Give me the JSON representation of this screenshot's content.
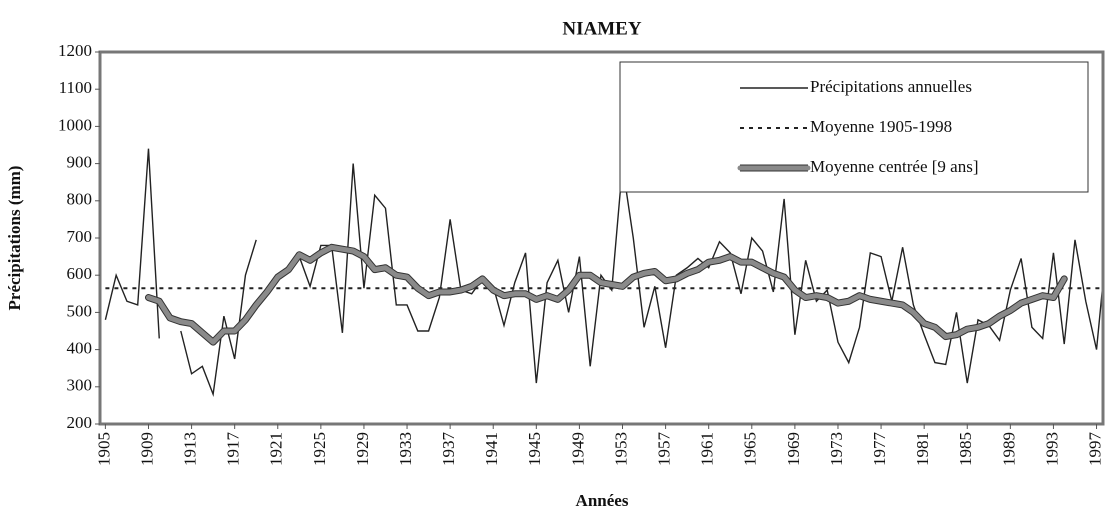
{
  "chart_data": {
    "type": "line",
    "title": "NIAMEY",
    "x_label": "Années",
    "y_label": "Précipitations (mm)",
    "xlim": [
      1904.5,
      1997.6
    ],
    "xticks": [
      1905,
      1909,
      1913,
      1917,
      1921,
      1925,
      1929,
      1933,
      1937,
      1941,
      1945,
      1949,
      1953,
      1957,
      1961,
      1965,
      1969,
      1973,
      1977,
      1981,
      1985,
      1989,
      1993,
      1997
    ],
    "ylim": [
      200,
      1200
    ],
    "yticks": [
      200,
      300,
      400,
      500,
      600,
      700,
      800,
      900,
      1000,
      1100,
      1200
    ],
    "legend": "upper right",
    "series": [
      {
        "name": "Précipitations annuelles",
        "color": "#222222",
        "style": "solid",
        "x": [
          1905,
          1906,
          1907,
          1908,
          1909,
          1910,
          1911,
          1912,
          1913,
          1914,
          1915,
          1916,
          1917,
          1918,
          1919,
          1920,
          1921,
          1922,
          1923,
          1924,
          1925,
          1926,
          1927,
          1928,
          1929,
          1930,
          1931,
          1932,
          1933,
          1934,
          1935,
          1936,
          1937,
          1938,
          1939,
          1940,
          1941,
          1942,
          1943,
          1944,
          1945,
          1946,
          1947,
          1948,
          1949,
          1950,
          1951,
          1952,
          1953,
          1954,
          1955,
          1956,
          1957,
          1958,
          1959,
          1960,
          1961,
          1962,
          1963,
          1964,
          1965,
          1966,
          1967,
          1968,
          1969,
          1970,
          1971,
          1972,
          1973,
          1974,
          1975,
          1976,
          1977,
          1978,
          1979,
          1980,
          1981,
          1982,
          1983,
          1984,
          1985,
          1986,
          1987,
          1988,
          1989,
          1990,
          1991,
          1992,
          1993,
          1994,
          1995,
          1996,
          1997,
          1998
        ],
        "values": [
          480,
          600,
          530,
          520,
          940,
          430,
          null,
          450,
          335,
          355,
          280,
          490,
          375,
          600,
          695,
          null,
          600,
          610,
          650,
          570,
          680,
          680,
          445,
          900,
          565,
          815,
          780,
          520,
          520,
          450,
          450,
          540,
          750,
          560,
          550,
          590,
          570,
          465,
          580,
          660,
          310,
          580,
          640,
          500,
          650,
          355,
          600,
          560,
          895,
          700,
          460,
          570,
          405,
          600,
          620,
          645,
          620,
          690,
          660,
          550,
          700,
          665,
          555,
          805,
          440,
          640,
          530,
          560,
          420,
          365,
          460,
          660,
          650,
          530,
          675,
          520,
          440,
          365,
          360,
          500,
          310,
          480,
          465,
          425,
          560,
          645,
          460,
          430,
          660,
          415,
          695,
          530,
          400,
          700
        ]
      },
      {
        "name": "Moyenne 1905-1998",
        "color": "#222222",
        "style": "dotted",
        "x": [
          1905,
          1998
        ],
        "values": [
          565,
          565
        ]
      },
      {
        "name": "Moyenne centrée [9 ans]",
        "color": "#8a8a8a",
        "style": "thick",
        "x": [
          1909,
          1910,
          1911,
          1912,
          1913,
          1914,
          1915,
          1916,
          1917,
          1918,
          1919,
          1920,
          1921,
          1922,
          1923,
          1924,
          1925,
          1926,
          1927,
          1928,
          1929,
          1930,
          1931,
          1932,
          1933,
          1934,
          1935,
          1936,
          1937,
          1938,
          1939,
          1940,
          1941,
          1942,
          1943,
          1944,
          1945,
          1946,
          1947,
          1948,
          1949,
          1950,
          1951,
          1952,
          1953,
          1954,
          1955,
          1956,
          1957,
          1958,
          1959,
          1960,
          1961,
          1962,
          1963,
          1964,
          1965,
          1966,
          1967,
          1968,
          1969,
          1970,
          1971,
          1972,
          1973,
          1974,
          1975,
          1976,
          1977,
          1978,
          1979,
          1980,
          1981,
          1982,
          1983,
          1984,
          1985,
          1986,
          1987,
          1988,
          1989,
          1990,
          1991,
          1992,
          1993,
          1994
        ],
        "values": [
          540,
          530,
          485,
          475,
          470,
          445,
          420,
          450,
          450,
          480,
          520,
          555,
          595,
          615,
          655,
          640,
          660,
          675,
          670,
          665,
          650,
          615,
          620,
          600,
          595,
          565,
          545,
          555,
          555,
          560,
          570,
          590,
          560,
          545,
          550,
          550,
          535,
          545,
          535,
          560,
          600,
          600,
          580,
          575,
          570,
          595,
          605,
          610,
          585,
          590,
          605,
          615,
          635,
          640,
          650,
          635,
          635,
          620,
          605,
          595,
          560,
          540,
          545,
          540,
          525,
          530,
          545,
          535,
          530,
          525,
          520,
          500,
          470,
          460,
          435,
          440,
          455,
          460,
          470,
          490,
          505,
          525,
          535,
          545,
          540,
          590
        ]
      }
    ]
  }
}
